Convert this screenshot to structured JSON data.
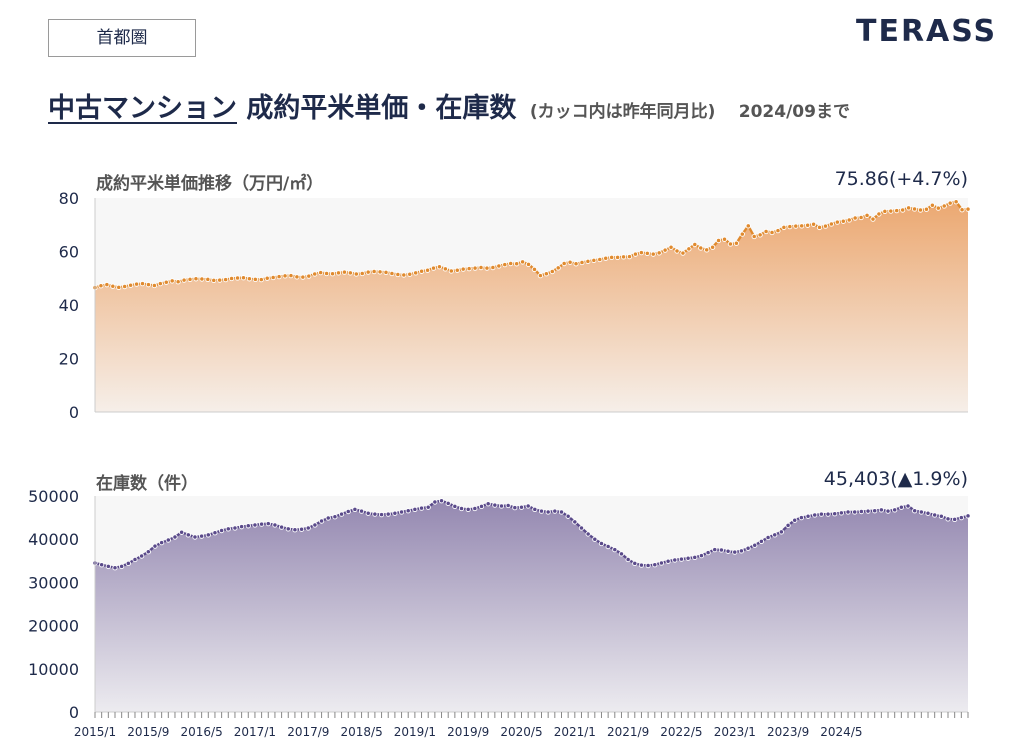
{
  "header": {
    "region_label": "首都圏",
    "brand": "TERASS",
    "title_highlight": "中古マンション",
    "title_main": "成約平米単価・在庫数",
    "title_note": "(カッコ内は昨年同月比)",
    "title_asof": "2024/09まで"
  },
  "colors": {
    "price_line": "#e08a2e",
    "price_fill_top": "#eba46a",
    "stock_line": "#5a4a8a",
    "stock_fill_top": "#8f82ad",
    "text": "#1e2a4a"
  },
  "chart_data": [
    {
      "type": "area",
      "title": "成約平米単価推移（万円/㎡）",
      "latest_label": "75.86(+4.7%)",
      "ylim": [
        0,
        80
      ],
      "yticks": [
        "0",
        "20",
        "40",
        "60",
        "80"
      ],
      "x_start": "2015/1",
      "x_end": "2024/9",
      "grid": false,
      "values": [
        46.5,
        47.2,
        47.6,
        47.0,
        46.6,
        46.9,
        47.4,
        47.8,
        48.0,
        47.6,
        47.3,
        48.0,
        48.5,
        49.0,
        48.7,
        49.3,
        49.6,
        49.8,
        49.7,
        49.6,
        49.2,
        49.3,
        49.5,
        49.9,
        50.1,
        50.2,
        49.8,
        49.6,
        49.5,
        50.0,
        50.3,
        50.6,
        50.9,
        51.0,
        50.5,
        50.4,
        50.8,
        51.6,
        52.1,
        51.8,
        51.7,
        52.0,
        52.3,
        52.0,
        51.6,
        51.8,
        52.3,
        52.5,
        52.4,
        52.2,
        51.8,
        51.4,
        51.2,
        51.5,
        52.0,
        52.6,
        53.0,
        53.8,
        54.3,
        53.5,
        52.7,
        53.0,
        53.4,
        53.6,
        53.8,
        54.0,
        53.8,
        54.0,
        54.6,
        55.1,
        55.5,
        55.4,
        56.1,
        55.2,
        53.3,
        51.0,
        51.7,
        52.5,
        53.9,
        55.5,
        56.0,
        55.4,
        55.9,
        56.3,
        56.7,
        57.0,
        57.5,
        57.8,
        57.8,
        58.0,
        58.1,
        59.0,
        59.6,
        59.3,
        59.0,
        59.5,
        60.5,
        61.6,
        60.2,
        59.4,
        61.0,
        62.6,
        61.3,
        60.6,
        61.6,
        64.1,
        64.6,
        62.8,
        63.1,
        66.5,
        69.6,
        65.6,
        66.2,
        67.5,
        67.1,
        67.8,
        69.0,
        69.3,
        69.5,
        69.6,
        69.8,
        70.2,
        69.0,
        69.5,
        70.3,
        71.0,
        71.3,
        71.8,
        72.5,
        72.7,
        73.5,
        72.1,
        74.0,
        75.0,
        75.1,
        75.3,
        75.5,
        76.3,
        75.9,
        75.5,
        75.8,
        77.3,
        76.2,
        77.0,
        78.1,
        78.6,
        75.6,
        75.86
      ],
      "x_tick_labels": [
        "2015/1",
        "2015/9",
        "2016/5",
        "2017/1",
        "2017/9",
        "2018/5",
        "2019/1",
        "2019/9",
        "2020/5",
        "2021/1",
        "2021/9",
        "2022/5",
        "2023/1",
        "2023/9",
        "2024/5"
      ]
    },
    {
      "type": "area",
      "title": "在庫数（件）",
      "latest_label": "45,403(▲1.9%)",
      "ylim": [
        0,
        50000
      ],
      "yticks": [
        "0",
        "10000",
        "20000",
        "30000",
        "40000",
        "50000"
      ],
      "x_start": "2015/1",
      "x_end": "2024/9",
      "grid": false,
      "values": [
        34500,
        34100,
        33700,
        33400,
        33700,
        34400,
        35300,
        36100,
        37100,
        38400,
        39200,
        39800,
        40500,
        41600,
        41000,
        40500,
        40700,
        41000,
        41500,
        42000,
        42400,
        42600,
        42900,
        43100,
        43300,
        43500,
        43600,
        43300,
        42800,
        42400,
        42200,
        42300,
        42600,
        43300,
        44200,
        44900,
        45200,
        45800,
        46400,
        46900,
        46500,
        46000,
        45800,
        45700,
        45800,
        46000,
        46300,
        46600,
        46900,
        47200,
        47400,
        48600,
        48900,
        48300,
        47600,
        47100,
        46900,
        47100,
        47600,
        48200,
        47900,
        47700,
        47800,
        47300,
        47400,
        47700,
        46900,
        46500,
        46300,
        46500,
        46300,
        45300,
        44000,
        42600,
        41200,
        40000,
        39000,
        38300,
        37600,
        36600,
        35300,
        34400,
        34000,
        33900,
        34100,
        34500,
        34900,
        35200,
        35400,
        35600,
        35800,
        36200,
        36900,
        37600,
        37500,
        37200,
        37000,
        37300,
        37900,
        38600,
        39500,
        40400,
        41000,
        41700,
        43200,
        44400,
        45000,
        45300,
        45600,
        45800,
        45800,
        45900,
        46100,
        46300,
        46300,
        46400,
        46500,
        46600,
        46800,
        46500,
        46800,
        47400,
        47700,
        46600,
        46300,
        46000,
        45600,
        45300,
        44700,
        44600,
        45000,
        45403
      ],
      "x_tick_labels": [
        "2015/1",
        "2015/9",
        "2016/5",
        "2017/1",
        "2017/9",
        "2018/5",
        "2019/1",
        "2019/9",
        "2020/5",
        "2021/1",
        "2021/9",
        "2022/5",
        "2023/1",
        "2023/9",
        "2024/5"
      ]
    }
  ]
}
